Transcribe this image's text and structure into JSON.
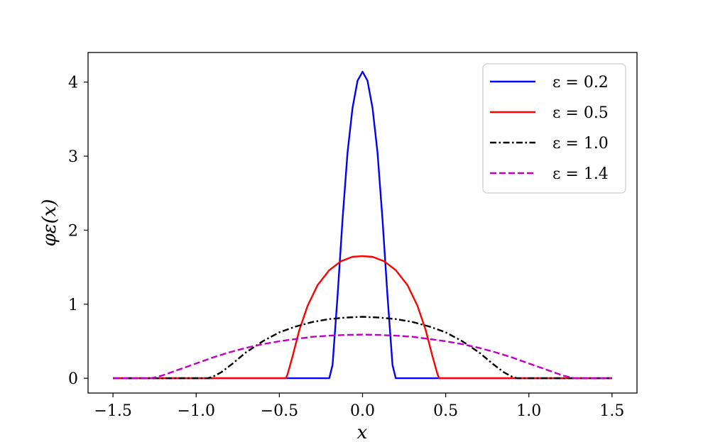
{
  "chart_data": {
    "type": "line",
    "title": "",
    "xlabel": "x",
    "ylabel": "φε(x)",
    "xlim": [
      -1.65,
      1.65
    ],
    "ylim": [
      -0.2,
      4.4
    ],
    "x_ticks": [
      {
        "value": -1.5,
        "label": "−1.5"
      },
      {
        "value": -1.0,
        "label": "−1.0"
      },
      {
        "value": -0.5,
        "label": "−0.5"
      },
      {
        "value": 0.0,
        "label": "0.0"
      },
      {
        "value": 0.5,
        "label": "0.5"
      },
      {
        "value": 1.0,
        "label": "1.0"
      },
      {
        "value": 1.5,
        "label": "1.5"
      }
    ],
    "y_ticks": [
      {
        "value": 0,
        "label": "0"
      },
      {
        "value": 1,
        "label": "1"
      },
      {
        "value": 2,
        "label": "2"
      },
      {
        "value": 3,
        "label": "3"
      },
      {
        "value": 4,
        "label": "4"
      }
    ],
    "grid": false,
    "legend_position": "top-right",
    "series": [
      {
        "name": "ε = 0.2",
        "color": "#0000ff",
        "dash": "solid",
        "x": [
          -1.5,
          -0.2,
          -0.18,
          -0.15,
          -0.12,
          -0.09,
          -0.06,
          -0.03,
          0.0,
          0.03,
          0.06,
          0.09,
          0.12,
          0.15,
          0.18,
          0.2,
          1.5
        ],
        "y": [
          0,
          0,
          0.18,
          1.12,
          2.15,
          3.05,
          3.65,
          4.02,
          4.14,
          4.02,
          3.65,
          3.05,
          2.15,
          1.12,
          0.18,
          0,
          0
        ]
      },
      {
        "name": "ε = 0.5",
        "color": "#ff0000",
        "dash": "solid",
        "x": [
          -1.5,
          -0.46,
          -0.45,
          -0.42,
          -0.38,
          -0.33,
          -0.27,
          -0.2,
          -0.13,
          -0.06,
          0.0,
          0.06,
          0.13,
          0.2,
          0.27,
          0.33,
          0.38,
          0.42,
          0.45,
          0.46,
          1.5
        ],
        "y": [
          0,
          0,
          0.06,
          0.3,
          0.65,
          0.98,
          1.26,
          1.46,
          1.58,
          1.64,
          1.65,
          1.64,
          1.58,
          1.46,
          1.26,
          0.98,
          0.65,
          0.3,
          0.06,
          0,
          0
        ]
      },
      {
        "name": "ε = 1.0",
        "color": "#000000",
        "dash": "dashdot",
        "x": [
          -1.5,
          -0.93,
          -0.9,
          -0.85,
          -0.78,
          -0.7,
          -0.6,
          -0.5,
          -0.4,
          -0.3,
          -0.2,
          -0.1,
          0.0,
          0.1,
          0.2,
          0.3,
          0.4,
          0.5,
          0.6,
          0.7,
          0.78,
          0.85,
          0.9,
          0.93,
          1.5
        ],
        "y": [
          0,
          0,
          0.02,
          0.08,
          0.2,
          0.35,
          0.5,
          0.62,
          0.7,
          0.76,
          0.8,
          0.82,
          0.83,
          0.82,
          0.8,
          0.76,
          0.7,
          0.62,
          0.5,
          0.35,
          0.2,
          0.08,
          0.02,
          0,
          0
        ]
      },
      {
        "name": "ε = 1.4",
        "color": "#bf00bf",
        "dash": "dashed",
        "x": [
          -1.5,
          -1.27,
          -1.2,
          -1.1,
          -1.0,
          -0.9,
          -0.8,
          -0.7,
          -0.6,
          -0.5,
          -0.4,
          -0.3,
          -0.2,
          -0.1,
          0.0,
          0.1,
          0.2,
          0.3,
          0.4,
          0.5,
          0.6,
          0.7,
          0.8,
          0.9,
          1.0,
          1.1,
          1.2,
          1.27,
          1.5
        ],
        "y": [
          0,
          0,
          0.04,
          0.12,
          0.2,
          0.28,
          0.35,
          0.41,
          0.46,
          0.5,
          0.53,
          0.56,
          0.575,
          0.585,
          0.59,
          0.585,
          0.575,
          0.56,
          0.53,
          0.5,
          0.46,
          0.41,
          0.35,
          0.28,
          0.2,
          0.12,
          0.04,
          0,
          0
        ]
      }
    ]
  }
}
